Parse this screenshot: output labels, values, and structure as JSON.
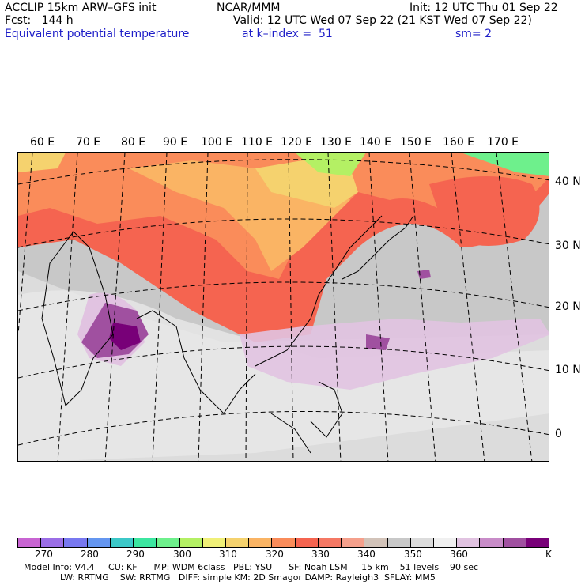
{
  "header": {
    "model_title": "ACCLIP 15km ARW–GFS init",
    "forecast": "Fcst:   144 h",
    "field": "Equivalent potential temperature",
    "center": "NCAR/MMM",
    "valid": "Valid: 12 UTC Wed 07 Sep 22 (21 KST Wed 07 Sep 22)",
    "level": "at k–index =  51",
    "init": "Init: 12 UTC Thu 01 Sep 22",
    "smoothing": "sm= 2"
  },
  "map": {
    "lon_labels": [
      "60 E",
      "70 E",
      "80 E",
      "90 E",
      "100 E",
      "110 E",
      "120 E",
      "130 E",
      "140 E",
      "150 E",
      "160 E",
      "170 E"
    ],
    "lat_labels": [
      "40 N",
      "30 N",
      "20 N",
      "10 N",
      "0"
    ]
  },
  "colorbar": {
    "colors": [
      "#c864d2",
      "#9b6ee6",
      "#7878f0",
      "#6496f0",
      "#3cc8c8",
      "#3ce6a0",
      "#6ef08c",
      "#b4f064",
      "#f0f078",
      "#f5d26e",
      "#fab464",
      "#fa8c5a",
      "#f56450",
      "#f57864",
      "#f5a08c",
      "#d2c3b9",
      "#c8c8c8",
      "#dcdcdc",
      "#f0f0f0",
      "#e1c3e1",
      "#c88cc8",
      "#a050a0",
      "#780078"
    ],
    "tick_labels": [
      "270",
      "280",
      "290",
      "300",
      "310",
      "320",
      "330",
      "340",
      "350",
      "360"
    ],
    "unit": "K"
  },
  "model_info": {
    "line1": "Model Info: V4.4     CU: KF      MP: WDM 6class   PBL: YSU      SF: Noah LSM     15 km    51 levels    90 sec",
    "line2": "LW: RRTMG    SW: RRTMG   DIFF: simple KM: 2D Smagor DAMP: Rayleigh3  SFLAY: MM5"
  }
}
